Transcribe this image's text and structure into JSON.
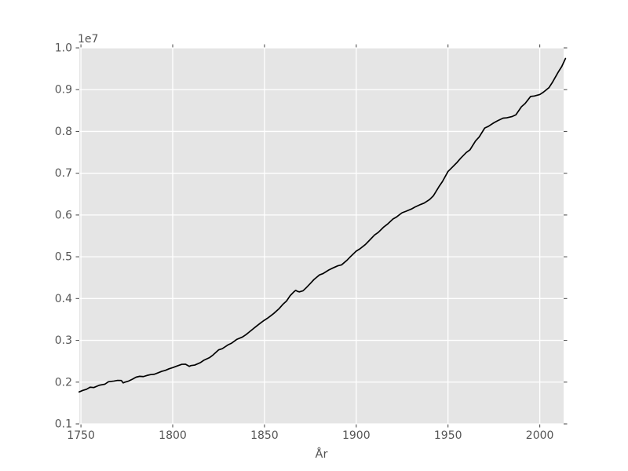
{
  "chart_data": {
    "type": "line",
    "title": "",
    "xlabel": "År",
    "ylabel": "",
    "y_offset_text": "1e7",
    "grid": true,
    "legend_position": "none",
    "plot_bg_note": "ggplot-style gray panel with white gridlines, ticks on all four sides",
    "xlim": [
      1749.1,
      2013.0
    ],
    "ylim": [
      1000000,
      10000000
    ],
    "x_tick_values": [
      1750,
      1800,
      1850,
      1900,
      1950,
      2000
    ],
    "x_tick_labels": [
      "1750",
      "1800",
      "1850",
      "1900",
      "1950",
      "2000"
    ],
    "y_tick_values": [
      1000000,
      2000000,
      3000000,
      4000000,
      5000000,
      6000000,
      7000000,
      8000000,
      9000000,
      10000000
    ],
    "y_tick_labels": [
      "0.1",
      "0.2",
      "0.3",
      "0.4",
      "0.5",
      "0.6",
      "0.7",
      "0.8",
      "0.9",
      "1.0"
    ],
    "series": [
      {
        "x": [
          1749,
          1751,
          1753,
          1755,
          1757,
          1760,
          1763,
          1765,
          1768,
          1770,
          1772,
          1773,
          1774,
          1776,
          1778,
          1780,
          1782,
          1784,
          1786,
          1788,
          1790,
          1792,
          1794,
          1796,
          1798,
          1800,
          1802,
          1805,
          1807,
          1809,
          1810,
          1812,
          1815,
          1817,
          1820,
          1822,
          1825,
          1827,
          1830,
          1832,
          1835,
          1838,
          1840,
          1842,
          1845,
          1848,
          1850,
          1852,
          1855,
          1858,
          1860,
          1862,
          1864,
          1866,
          1867,
          1868,
          1869,
          1871,
          1873,
          1875,
          1877,
          1880,
          1882,
          1885,
          1887,
          1890,
          1892,
          1895,
          1897,
          1900,
          1902,
          1905,
          1907,
          1910,
          1912,
          1915,
          1917,
          1920,
          1922,
          1925,
          1927,
          1930,
          1932,
          1935,
          1937,
          1940,
          1942,
          1945,
          1947,
          1950,
          1952,
          1955,
          1957,
          1960,
          1962,
          1965,
          1967,
          1970,
          1972,
          1975,
          1977,
          1980,
          1982,
          1985,
          1987,
          1990,
          1992,
          1995,
          1997,
          2000,
          2002,
          2005,
          2007,
          2010,
          2012,
          2014
        ],
        "y": [
          1765000,
          1802000,
          1828000,
          1878000,
          1870000,
          1925000,
          1950000,
          2009000,
          2025000,
          2042000,
          2039000,
          1981000,
          2000000,
          2026000,
          2068000,
          2118000,
          2139000,
          2132000,
          2160000,
          2180000,
          2188000,
          2223000,
          2258000,
          2281000,
          2319000,
          2347000,
          2379000,
          2427000,
          2428000,
          2378000,
          2396000,
          2408000,
          2465000,
          2524000,
          2585000,
          2650000,
          2771000,
          2800000,
          2888000,
          2930000,
          3025000,
          3080000,
          3139000,
          3210000,
          3317000,
          3420000,
          3483000,
          3540000,
          3641000,
          3760000,
          3860000,
          3940000,
          4070000,
          4160000,
          4196000,
          4173000,
          4159000,
          4186000,
          4270000,
          4362000,
          4457000,
          4566000,
          4600000,
          4683000,
          4726000,
          4785000,
          4806000,
          4919000,
          5010000,
          5136000,
          5190000,
          5295000,
          5385000,
          5522000,
          5583000,
          5713000,
          5780000,
          5904000,
          5954000,
          6054000,
          6087000,
          6142000,
          6190000,
          6251000,
          6285000,
          6371000,
          6458000,
          6674000,
          6803000,
          7042000,
          7129000,
          7262000,
          7364000,
          7498000,
          7562000,
          7773000,
          7868000,
          8081000,
          8122000,
          8208000,
          8255000,
          8318000,
          8327000,
          8358000,
          8398000,
          8591000,
          8668000,
          8837000,
          8848000,
          8883000,
          8941000,
          9048000,
          9183000,
          9416000,
          9556000,
          9747000
        ]
      }
    ]
  },
  "style": {
    "figure_bg": "#ffffff",
    "plot_bg": "#e5e5e5",
    "grid_color": "#ffffff",
    "tick_color": "#555555",
    "text_color": "#555555",
    "line_color": "#000000"
  }
}
